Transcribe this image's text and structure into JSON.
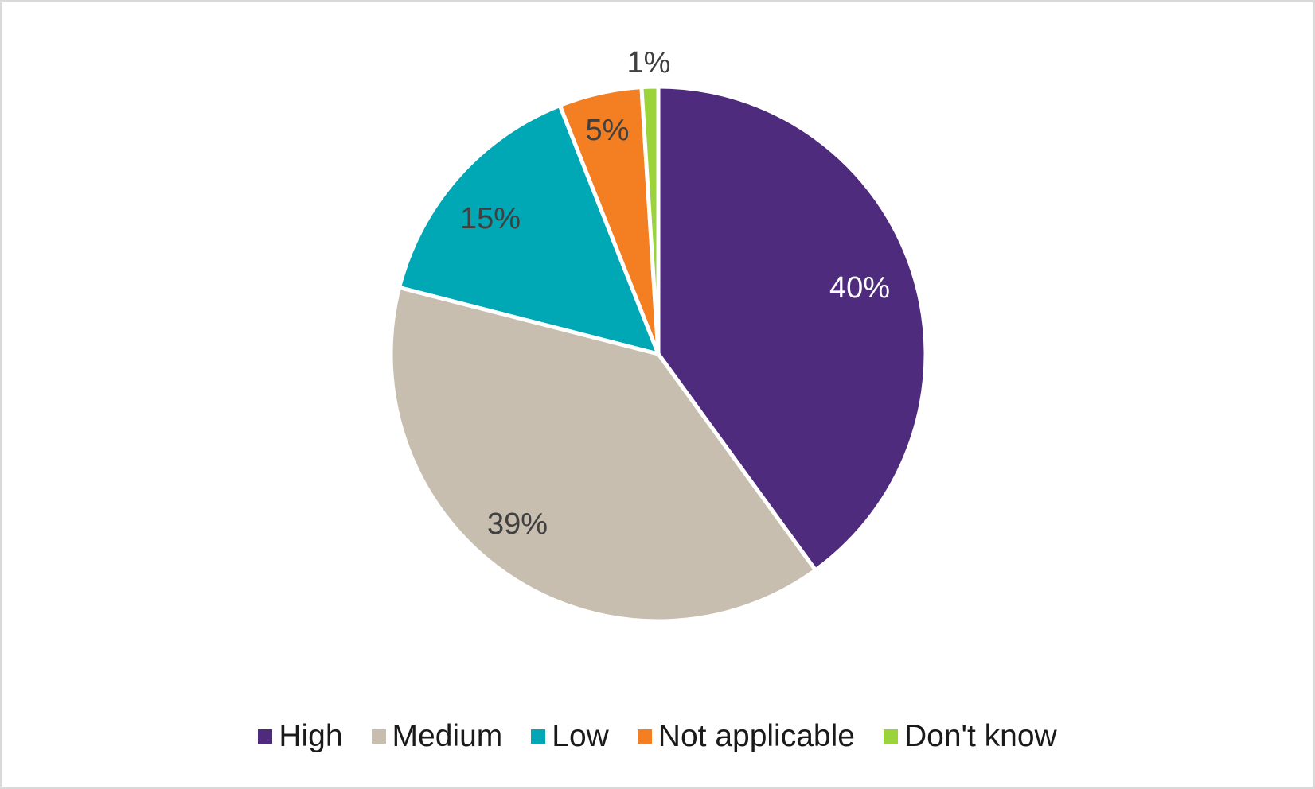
{
  "chart_data": {
    "type": "pie",
    "title": "",
    "categories": [
      "High",
      "Medium",
      "Low",
      "Not applicable",
      "Don't know"
    ],
    "values": [
      40,
      39,
      15,
      5,
      1
    ],
    "labels": [
      "40%",
      "39%",
      "15%",
      "5%",
      "1%"
    ],
    "colors": [
      "#4e2b7c",
      "#c8beb0",
      "#00a7b5",
      "#f47e22",
      "#9ad43a"
    ],
    "label_colors": [
      "#ffffff",
      "#404040",
      "#404040",
      "#404040",
      "#404040"
    ],
    "start_angle_deg": 0,
    "direction": "clockwise",
    "legend_position": "bottom"
  },
  "legend": {
    "items": [
      {
        "label": "High",
        "color": "#4e2b7c"
      },
      {
        "label": "Medium",
        "color": "#c8beb0"
      },
      {
        "label": "Low",
        "color": "#00a7b5"
      },
      {
        "label": "Not applicable",
        "color": "#f47e22"
      },
      {
        "label": "Don't know",
        "color": "#9ad43a"
      }
    ]
  }
}
